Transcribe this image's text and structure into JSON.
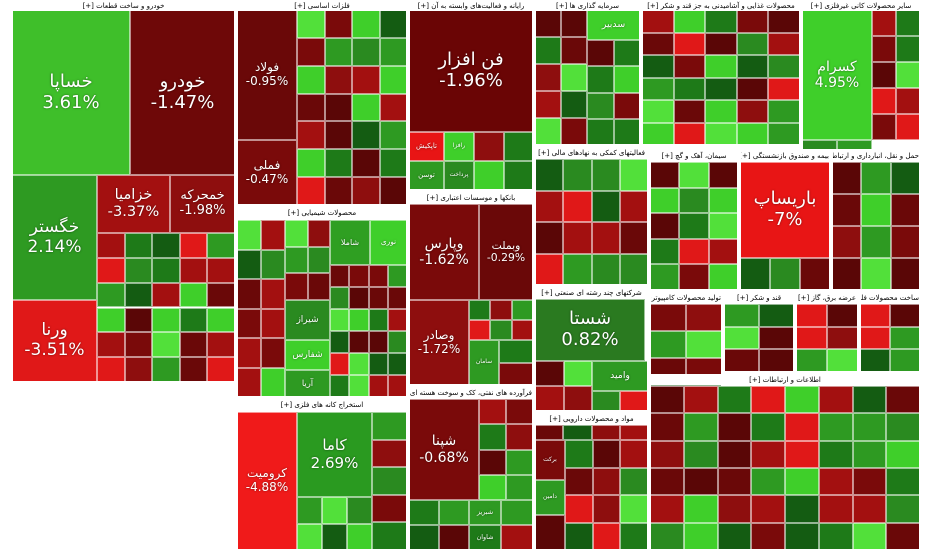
{
  "sectors": [
    {
      "title": "خودرو و ساخت قطعات [+]",
      "tiles": [
        {
          "name": "خساپا",
          "change": "3.61%"
        },
        {
          "name": "خودرو",
          "change": "-1.47%"
        },
        {
          "name": "خگستر",
          "change": "2.14%"
        },
        {
          "name": "ورنا",
          "change": "-3.51%"
        },
        {
          "name": "خزامیا",
          "change": "-3.37%"
        },
        {
          "name": "خمحرکه",
          "change": "-1.98%"
        }
      ]
    },
    {
      "title": "فلزات اساسی [+]",
      "tiles": [
        {
          "name": "فولاد",
          "change": "-0.95%"
        },
        {
          "name": "فملی",
          "change": "-0.47%"
        }
      ]
    },
    {
      "title": "محصولات شیمیایی [+]",
      "tiles": [
        {
          "name": "شاملا"
        },
        {
          "name": "نوری"
        },
        {
          "name": "شیراز"
        },
        {
          "name": "شفارس"
        },
        {
          "name": "آریا"
        }
      ]
    },
    {
      "title": "استخراج کانه های فلزی [+]",
      "tiles": [
        {
          "name": "کرومیت",
          "change": "-4.88%"
        },
        {
          "name": "کاما",
          "change": "2.69%"
        }
      ]
    },
    {
      "title": "رایانه و فعالیت‌های وابسته به آن [+]",
      "tiles": [
        {
          "name": "فن افزار",
          "change": "-1.96%"
        },
        {
          "name": "تاپکیش"
        },
        {
          "name": "رافزا"
        },
        {
          "name": "توسن"
        },
        {
          "name": "پرداخت"
        }
      ]
    },
    {
      "title": "بانکها و موسسات اعتباری [+]",
      "tiles": [
        {
          "name": "وپارس",
          "change": "-1.62%"
        },
        {
          "name": "وبملت",
          "change": "-0.29%"
        },
        {
          "name": "وصادر",
          "change": "-1.72%"
        },
        {
          "name": "سامان"
        }
      ]
    },
    {
      "title": "فرآورده های نفتی، کک و سوخت هسته ای [+]",
      "tiles": [
        {
          "name": "شپنا",
          "change": "-0.68%"
        },
        {
          "name": "شبریز"
        },
        {
          "name": "شاوان"
        }
      ]
    },
    {
      "title": "سرمایه گذاری ها [+]",
      "tiles": [
        {
          "name": "سدبیر"
        }
      ]
    },
    {
      "title": "فعالیتهای کمکی به نهادهای مالی [+]",
      "tiles": []
    },
    {
      "title": "شرکتهای چند رشته ای صنعتی [+]",
      "tiles": [
        {
          "name": "شستا",
          "change": "0.82%"
        },
        {
          "name": "وامید"
        }
      ]
    },
    {
      "title": "مواد و محصولات دارویی [+]",
      "tiles": [
        {
          "name": "برکت"
        },
        {
          "name": "دامین"
        }
      ]
    },
    {
      "title": "محصولات غذایی و آشامیدنی به جز قند و شکر [+]",
      "tiles": []
    },
    {
      "title": "سایر محصولات کانی غیرفلزی [+]",
      "tiles": [
        {
          "name": "کسرام",
          "change": "4.95%"
        }
      ]
    },
    {
      "title": "سیمان، آهک و گچ [+]",
      "tiles": []
    },
    {
      "title": "بیمه و صندوق بازنشستگی [+]",
      "tiles": [
        {
          "name": "باریساپ",
          "change": "-7%"
        }
      ]
    },
    {
      "title": "حمل و نقل، انبارداری و ارتباطات [+]",
      "tiles": []
    },
    {
      "title": "تولید محصولات کامپیوتری [+]",
      "tiles": []
    },
    {
      "title": "قند و شکر [+]",
      "tiles": []
    },
    {
      "title": "عرضه برق، گاز [+]",
      "tiles": []
    },
    {
      "title": "ساخت محصولات فلزی [+]",
      "tiles": []
    },
    {
      "title": "اطلاعات و ارتباطات [+]",
      "tiles": []
    }
  ]
}
